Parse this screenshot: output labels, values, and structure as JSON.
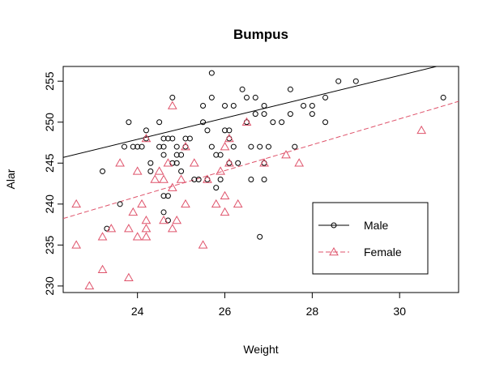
{
  "chart_data": {
    "type": "scatter",
    "title": "Bumpus",
    "xlabel": "Weight",
    "ylabel": "Alar",
    "xlim": [
      22.3,
      31.35
    ],
    "ylim": [
      229.2,
      256.8
    ],
    "xticks": [
      24,
      26,
      28,
      30
    ],
    "yticks": [
      230,
      235,
      240,
      245,
      250,
      255
    ],
    "legend_position": "bottom-right",
    "series": [
      {
        "name": "Male",
        "color": "#000000",
        "marker": "circle",
        "line_style": "solid",
        "regression": {
          "intercept": 216.7,
          "slope": 1.3
        },
        "points": [
          [
            23.2,
            244
          ],
          [
            23.3,
            237
          ],
          [
            23.6,
            240
          ],
          [
            23.7,
            247
          ],
          [
            23.8,
            250
          ],
          [
            23.9,
            247
          ],
          [
            24.0,
            247
          ],
          [
            24.1,
            247
          ],
          [
            24.2,
            248
          ],
          [
            24.2,
            249
          ],
          [
            24.3,
            245
          ],
          [
            24.3,
            244
          ],
          [
            24.5,
            250
          ],
          [
            24.5,
            247
          ],
          [
            24.6,
            241
          ],
          [
            24.6,
            248
          ],
          [
            24.6,
            247
          ],
          [
            24.6,
            246
          ],
          [
            24.6,
            239
          ],
          [
            24.7,
            241
          ],
          [
            24.7,
            248
          ],
          [
            24.7,
            238
          ],
          [
            24.8,
            253
          ],
          [
            24.8,
            248
          ],
          [
            24.8,
            245
          ],
          [
            24.9,
            247
          ],
          [
            24.9,
            246
          ],
          [
            24.9,
            245
          ],
          [
            25.0,
            246
          ],
          [
            25.0,
            244
          ],
          [
            25.1,
            248
          ],
          [
            25.1,
            247
          ],
          [
            25.2,
            248
          ],
          [
            25.3,
            243
          ],
          [
            25.4,
            243
          ],
          [
            25.5,
            252
          ],
          [
            25.5,
            250
          ],
          [
            25.6,
            243
          ],
          [
            25.6,
            249
          ],
          [
            25.7,
            256
          ],
          [
            25.7,
            253
          ],
          [
            25.7,
            247
          ],
          [
            25.8,
            246
          ],
          [
            25.8,
            242
          ],
          [
            25.9,
            246
          ],
          [
            25.9,
            243
          ],
          [
            26.0,
            249
          ],
          [
            26.0,
            252
          ],
          [
            26.1,
            249
          ],
          [
            26.1,
            248
          ],
          [
            26.1,
            245
          ],
          [
            26.2,
            252
          ],
          [
            26.2,
            247
          ],
          [
            26.3,
            245
          ],
          [
            26.4,
            254
          ],
          [
            26.5,
            253
          ],
          [
            26.5,
            250
          ],
          [
            26.6,
            247
          ],
          [
            26.6,
            243
          ],
          [
            26.7,
            253
          ],
          [
            26.7,
            251
          ],
          [
            26.8,
            247
          ],
          [
            26.8,
            236
          ],
          [
            26.9,
            252
          ],
          [
            26.9,
            251
          ],
          [
            26.9,
            245
          ],
          [
            26.9,
            243
          ],
          [
            27.0,
            247
          ],
          [
            27.1,
            250
          ],
          [
            27.3,
            250
          ],
          [
            27.5,
            254
          ],
          [
            27.5,
            251
          ],
          [
            27.6,
            247
          ],
          [
            27.8,
            252
          ],
          [
            28.0,
            252
          ],
          [
            28.0,
            251
          ],
          [
            28.3,
            253
          ],
          [
            28.3,
            250
          ],
          [
            28.6,
            255
          ],
          [
            29.0,
            255
          ],
          [
            31.0,
            253
          ]
        ]
      },
      {
        "name": "Female",
        "color": "#DF536B",
        "marker": "triangle",
        "line_style": "dashed",
        "regression": {
          "intercept": 203.0,
          "slope": 1.58
        },
        "points": [
          [
            22.6,
            240
          ],
          [
            22.6,
            235
          ],
          [
            22.9,
            230
          ],
          [
            23.2,
            236
          ],
          [
            23.2,
            232
          ],
          [
            23.4,
            237
          ],
          [
            23.6,
            245
          ],
          [
            23.8,
            231
          ],
          [
            23.8,
            237
          ],
          [
            23.9,
            239
          ],
          [
            24.0,
            244
          ],
          [
            24.0,
            236
          ],
          [
            24.1,
            240
          ],
          [
            24.2,
            248
          ],
          [
            24.2,
            238
          ],
          [
            24.2,
            237
          ],
          [
            24.2,
            236
          ],
          [
            24.4,
            243
          ],
          [
            24.5,
            244
          ],
          [
            24.6,
            243
          ],
          [
            24.6,
            238
          ],
          [
            24.7,
            245
          ],
          [
            24.8,
            252
          ],
          [
            24.8,
            242
          ],
          [
            24.8,
            237
          ],
          [
            24.9,
            238
          ],
          [
            25.0,
            243
          ],
          [
            25.1,
            247
          ],
          [
            25.1,
            240
          ],
          [
            25.3,
            245
          ],
          [
            25.5,
            235
          ],
          [
            25.6,
            243
          ],
          [
            25.8,
            240
          ],
          [
            25.9,
            244
          ],
          [
            26.0,
            247
          ],
          [
            26.0,
            241
          ],
          [
            26.0,
            239
          ],
          [
            26.1,
            248
          ],
          [
            26.1,
            245
          ],
          [
            26.3,
            240
          ],
          [
            26.5,
            250
          ],
          [
            26.9,
            245
          ],
          [
            27.4,
            246
          ],
          [
            27.7,
            245
          ],
          [
            30.5,
            249
          ]
        ]
      }
    ]
  }
}
